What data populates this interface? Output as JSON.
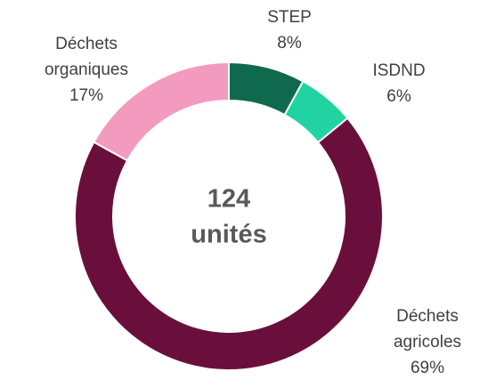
{
  "chart_data": {
    "type": "donut",
    "categories": [
      "STEP",
      "ISDND",
      "Déchets agricoles",
      "Déchets organiques"
    ],
    "values": [
      8,
      6,
      69,
      17
    ],
    "value_labels": [
      "8%",
      "6%",
      "69%",
      "17%"
    ],
    "colors": [
      "#0f6a4d",
      "#21d3a0",
      "#6a0f3b",
      "#f39abf"
    ],
    "center_text": [
      "124",
      "unités"
    ]
  }
}
